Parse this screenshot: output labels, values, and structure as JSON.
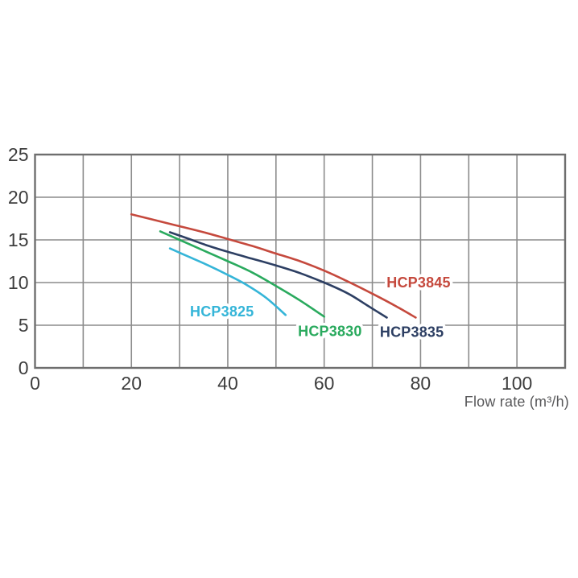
{
  "page": {
    "background": "#ffffff"
  },
  "chart_data": {
    "type": "line",
    "title": "",
    "xlabel": "Flow rate (m³/h)",
    "ylabel": "",
    "xlim": [
      0,
      110
    ],
    "ylim": [
      0,
      25
    ],
    "x_ticks": [
      0,
      20,
      40,
      60,
      80,
      100
    ],
    "x_grid_step": 10,
    "y_ticks": [
      0,
      5,
      10,
      15,
      20,
      25
    ],
    "y_grid_step": 5,
    "grid": true,
    "legend_position": "inline-labels",
    "series": [
      {
        "name": "HCP3845",
        "color": "#c5493d",
        "label_pos": [
          79.6,
          10.0
        ],
        "points": [
          [
            20,
            18.0
          ],
          [
            25,
            17.3
          ],
          [
            30,
            16.6
          ],
          [
            35,
            15.9
          ],
          [
            40,
            15.1
          ],
          [
            45,
            14.3
          ],
          [
            50,
            13.4
          ],
          [
            55,
            12.5
          ],
          [
            60,
            11.4
          ],
          [
            65,
            10.1
          ],
          [
            70,
            8.7
          ],
          [
            75,
            7.2
          ],
          [
            79,
            5.9
          ]
        ]
      },
      {
        "name": "HCP3835",
        "color": "#2d3f63",
        "label_pos": [
          78.2,
          4.2
        ],
        "points": [
          [
            28,
            15.9
          ],
          [
            32,
            15.1
          ],
          [
            36,
            14.3
          ],
          [
            40,
            13.6
          ],
          [
            45,
            12.8
          ],
          [
            50,
            12.0
          ],
          [
            55,
            11.1
          ],
          [
            60,
            10.0
          ],
          [
            65,
            8.7
          ],
          [
            69,
            7.3
          ],
          [
            73,
            5.9
          ]
        ]
      },
      {
        "name": "HCP3830",
        "color": "#2aaa5e",
        "label_pos": [
          61.2,
          4.3
        ],
        "points": [
          [
            26,
            16.0
          ],
          [
            30,
            15.0
          ],
          [
            34,
            14.0
          ],
          [
            40,
            12.5
          ],
          [
            45,
            11.2
          ],
          [
            50,
            9.6
          ],
          [
            55,
            7.9
          ],
          [
            60,
            6.0
          ]
        ]
      },
      {
        "name": "HCP3825",
        "color": "#35b5d8",
        "label_pos": [
          38.8,
          6.6
        ],
        "points": [
          [
            28,
            14.0
          ],
          [
            32,
            13.0
          ],
          [
            36,
            12.0
          ],
          [
            40,
            10.9
          ],
          [
            44,
            9.7
          ],
          [
            48,
            8.2
          ],
          [
            52,
            6.2
          ]
        ]
      }
    ]
  },
  "style": {
    "grid_color": "#8c8c8c",
    "border_color": "#6e6e6e",
    "tick_color": "#3d3d3d",
    "axis_label_color": "#58585a",
    "background": "#ffffff"
  }
}
